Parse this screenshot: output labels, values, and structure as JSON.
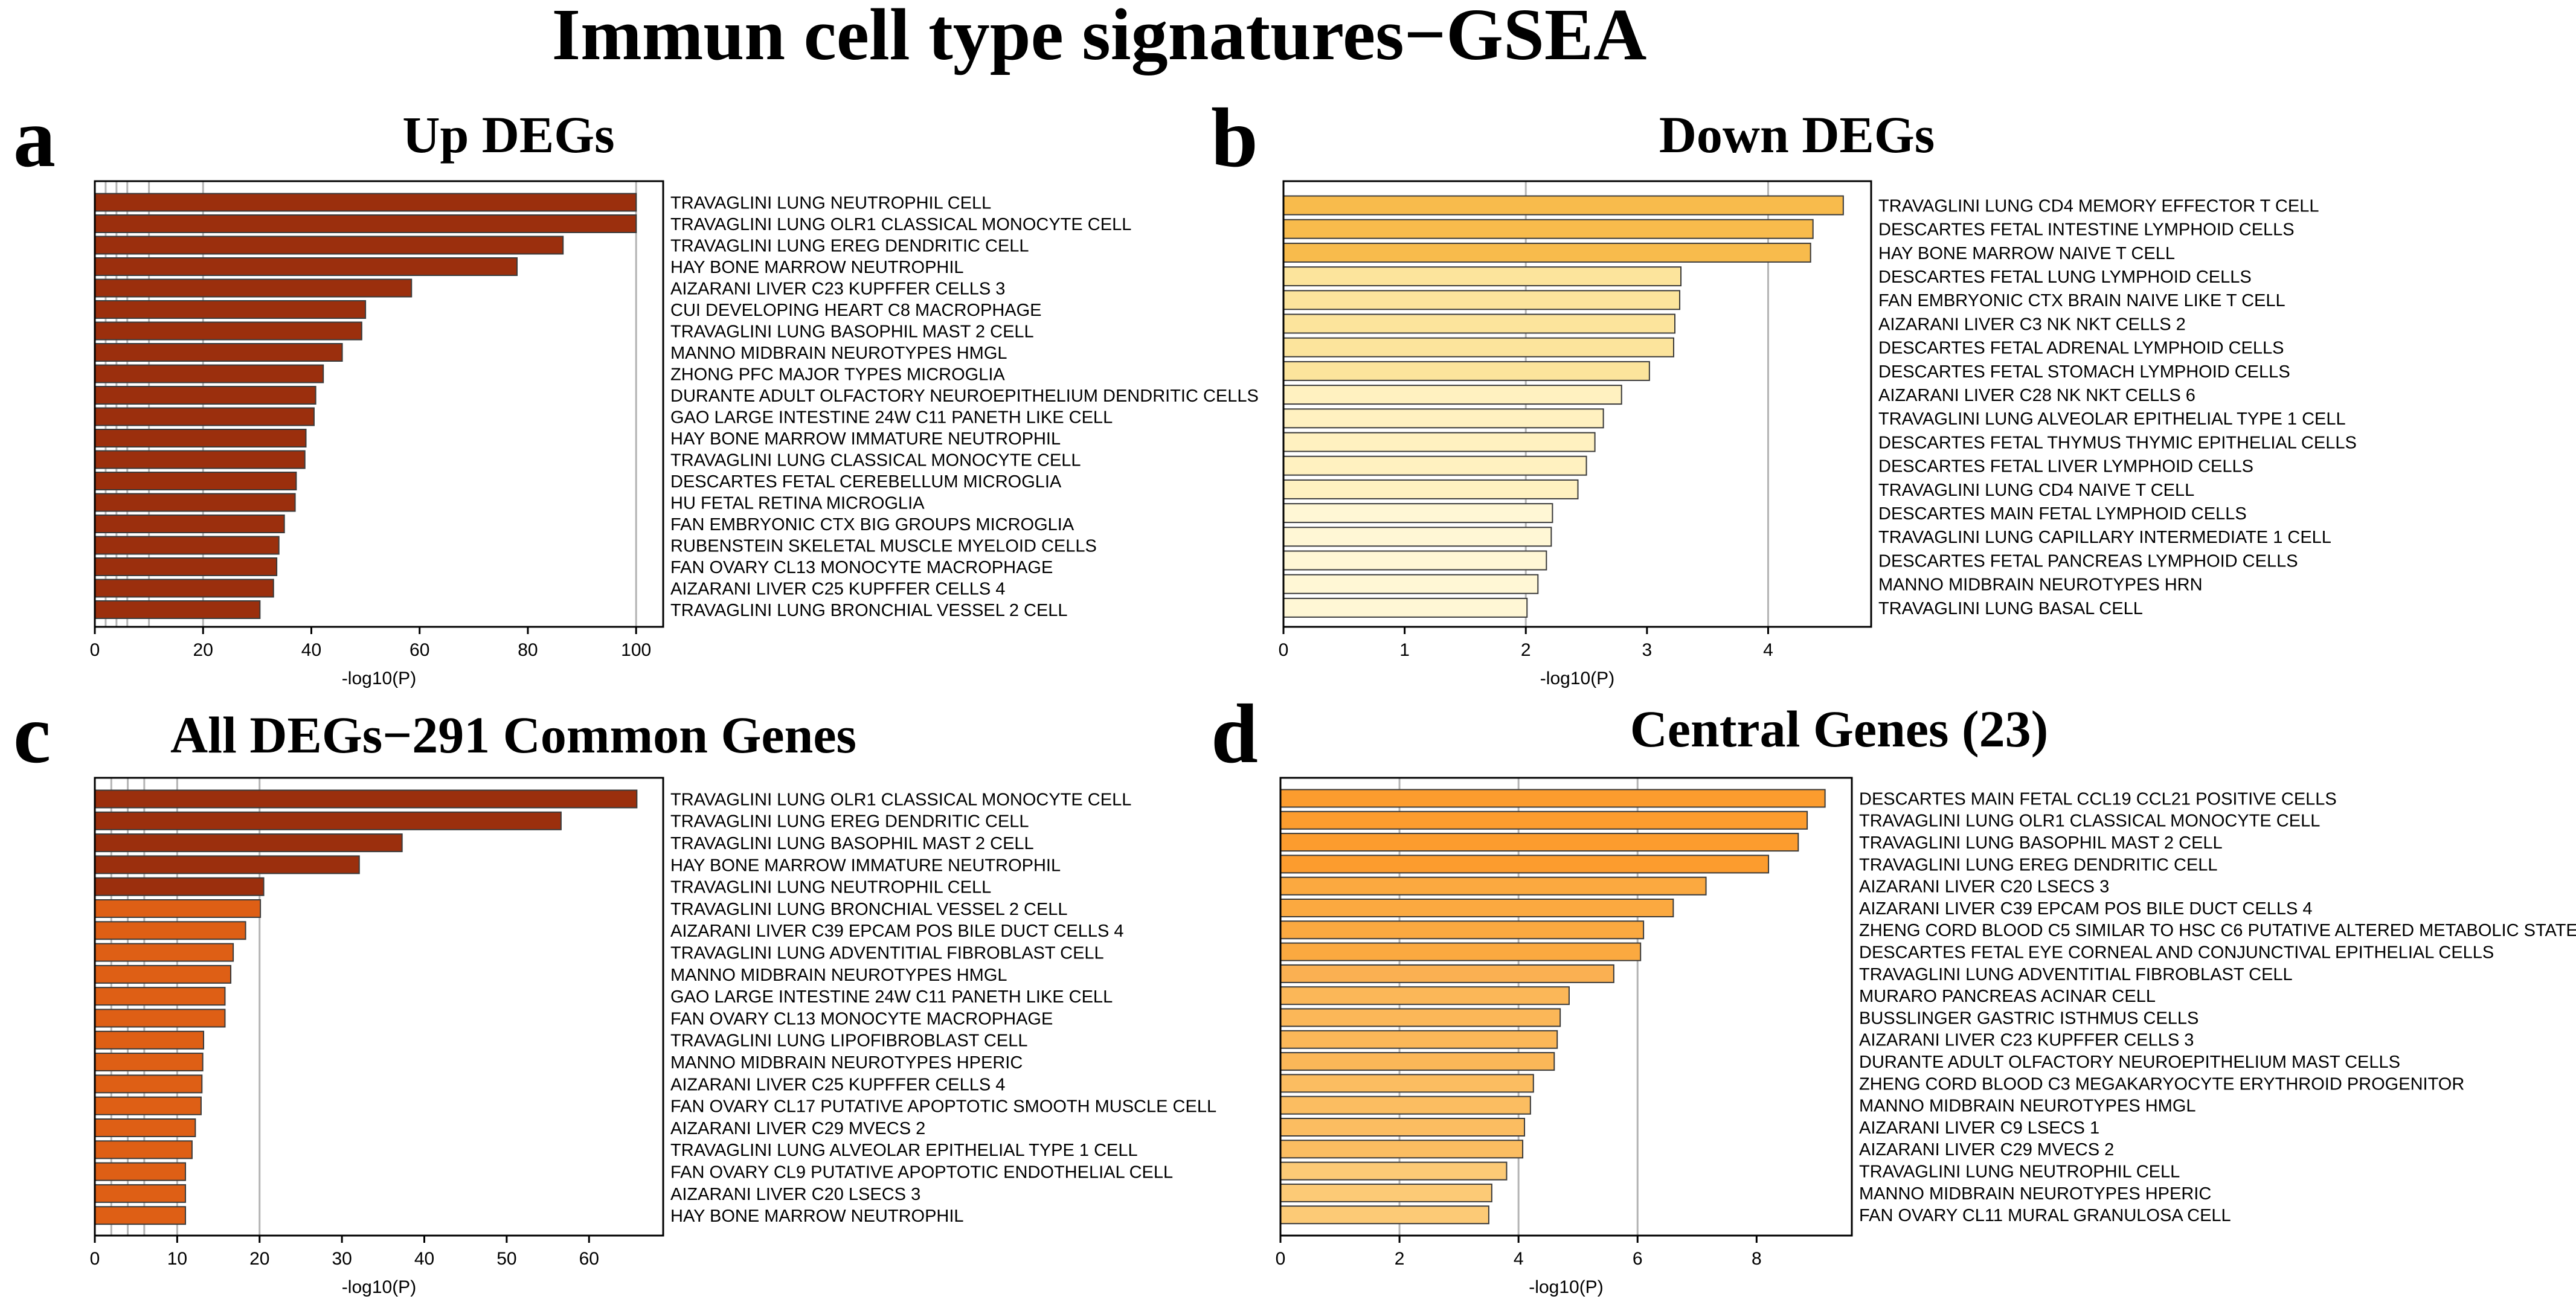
{
  "figure_title": "Immun cell type signatures−GSEA",
  "chart_data": [
    {
      "panel": "a",
      "type": "bar",
      "orientation": "horizontal",
      "title": "Up DEGs",
      "xlabel": "-log10(P)",
      "xlim": [
        0,
        105
      ],
      "xticks": [
        0,
        20,
        40,
        60,
        80,
        100
      ],
      "grid_x": [
        2,
        4,
        6,
        10,
        20,
        100
      ],
      "color": "#9b2f0d",
      "categories": [
        "TRAVAGLINI LUNG NEUTROPHIL CELL",
        "TRAVAGLINI LUNG OLR1 CLASSICAL MONOCYTE CELL",
        "TRAVAGLINI LUNG EREG DENDRITIC CELL",
        "HAY BONE MARROW NEUTROPHIL",
        "AIZARANI LIVER C23 KUPFFER CELLS 3",
        "CUI DEVELOPING HEART C8 MACROPHAGE",
        "TRAVAGLINI LUNG BASOPHIL MAST 2 CELL",
        "MANNO MIDBRAIN NEUROTYPES HMGL",
        "ZHONG PFC MAJOR TYPES MICROGLIA",
        "DURANTE ADULT OLFACTORY NEUROEPITHELIUM DENDRITIC CELLS",
        "GAO LARGE INTESTINE 24W C11 PANETH LIKE CELL",
        "HAY BONE MARROW IMMATURE NEUTROPHIL",
        "TRAVAGLINI LUNG CLASSICAL MONOCYTE CELL",
        "DESCARTES FETAL CEREBELLUM MICROGLIA",
        "HU FETAL RETINA MICROGLIA",
        "FAN EMBRYONIC CTX BIG GROUPS MICROGLIA",
        "RUBENSTEIN SKELETAL MUSCLE MYELOID CELLS",
        "FAN OVARY CL13 MONOCYTE MACROPHAGE",
        "AIZARANI LIVER C25 KUPFFER CELLS 4",
        "TRAVAGLINI LUNG BRONCHIAL VESSEL 2 CELL"
      ],
      "values": [
        100,
        100,
        86.5,
        78,
        58.5,
        50,
        49.3,
        45.7,
        42.2,
        40.8,
        40.5,
        39,
        38.8,
        37.2,
        37,
        35,
        34,
        33.6,
        33,
        30.5
      ]
    },
    {
      "panel": "b",
      "type": "bar",
      "orientation": "horizontal",
      "title": "Down DEGs",
      "xlabel": "-log10(P)",
      "xlim": [
        0,
        4.85
      ],
      "xticks": [
        0,
        1,
        2,
        3,
        4
      ],
      "grid_x": [
        2,
        4
      ],
      "colors": [
        "#f8bb4c",
        "#f8bb4c",
        "#f8bb4c",
        "#fce49c",
        "#fce49c",
        "#fce49c",
        "#fce49c",
        "#fce49c",
        "#fff1c0",
        "#fff1c0",
        "#fff1c0",
        "#fff1c0",
        "#fff1c0",
        "#fff7d5",
        "#fff7d5",
        "#fff7d5",
        "#fff7d5",
        "#fff7d5"
      ],
      "categories": [
        "TRAVAGLINI LUNG CD4 MEMORY EFFECTOR T CELL",
        "DESCARTES FETAL INTESTINE LYMPHOID CELLS",
        "HAY BONE MARROW NAIVE T CELL",
        "DESCARTES FETAL LUNG LYMPHOID CELLS",
        "FAN EMBRYONIC CTX BRAIN NAIVE LIKE T CELL",
        "AIZARANI LIVER C3 NK NKT CELLS 2",
        "DESCARTES FETAL ADRENAL LYMPHOID CELLS",
        "DESCARTES FETAL STOMACH LYMPHOID CELLS",
        "AIZARANI LIVER C28 NK NKT CELLS 6",
        "TRAVAGLINI LUNG ALVEOLAR EPITHELIAL TYPE 1 CELL",
        "DESCARTES FETAL THYMUS THYMIC EPITHELIAL CELLS",
        "DESCARTES FETAL LIVER LYMPHOID CELLS",
        "TRAVAGLINI LUNG CD4 NAIVE T CELL",
        "DESCARTES MAIN FETAL LYMPHOID CELLS",
        "TRAVAGLINI LUNG CAPILLARY INTERMEDIATE 1 CELL",
        "DESCARTES FETAL PANCREAS LYMPHOID CELLS",
        "MANNO MIDBRAIN NEUROTYPES HRN",
        "TRAVAGLINI LUNG BASAL CELL"
      ],
      "values": [
        4.62,
        4.37,
        4.35,
        3.28,
        3.27,
        3.23,
        3.22,
        3.02,
        2.79,
        2.64,
        2.57,
        2.5,
        2.43,
        2.22,
        2.21,
        2.17,
        2.1,
        2.01
      ]
    },
    {
      "panel": "c",
      "type": "bar",
      "orientation": "horizontal",
      "title": "All DEGs−291 Common Genes",
      "xlabel": "-log10(P)",
      "xlim": [
        0,
        69
      ],
      "xticks": [
        0,
        10,
        20,
        30,
        40,
        50,
        60
      ],
      "grid_x": [
        2,
        4,
        6,
        10,
        20
      ],
      "colors": [
        "#9b2f0d",
        "#9b2f0d",
        "#9b2f0d",
        "#9b2f0d",
        "#9b2f0d",
        "#de5f15",
        "#de5f15",
        "#de5f15",
        "#de5f15",
        "#de5f15",
        "#de5f15",
        "#de5f15",
        "#de5f15",
        "#de5f15",
        "#de5f15",
        "#de5f15",
        "#de5f15",
        "#de5f15",
        "#de5f15",
        "#de5f15"
      ],
      "categories": [
        "TRAVAGLINI LUNG OLR1 CLASSICAL MONOCYTE CELL",
        "TRAVAGLINI LUNG EREG DENDRITIC CELL",
        "TRAVAGLINI LUNG BASOPHIL MAST 2 CELL",
        "HAY BONE MARROW IMMATURE NEUTROPHIL",
        "TRAVAGLINI LUNG NEUTROPHIL CELL",
        "TRAVAGLINI LUNG BRONCHIAL VESSEL 2 CELL",
        "AIZARANI LIVER C39 EPCAM POS BILE DUCT CELLS 4",
        "TRAVAGLINI LUNG ADVENTITIAL FIBROBLAST CELL",
        "MANNO MIDBRAIN NEUROTYPES HMGL",
        "GAO LARGE INTESTINE 24W C11 PANETH LIKE CELL",
        "FAN OVARY CL13 MONOCYTE MACROPHAGE",
        "TRAVAGLINI LUNG LIPOFIBROBLAST CELL",
        "MANNO MIDBRAIN NEUROTYPES HPERIC",
        "AIZARANI LIVER C25 KUPFFER CELLS 4",
        "FAN OVARY CL17 PUTATIVE APOPTOTIC SMOOTH MUSCLE CELL",
        "AIZARANI LIVER C29 MVECS 2",
        "TRAVAGLINI LUNG ALVEOLAR EPITHELIAL TYPE 1 CELL",
        "FAN OVARY CL9 PUTATIVE APOPTOTIC ENDOTHELIAL CELL",
        "AIZARANI LIVER C20 LSECS 3",
        "HAY BONE MARROW NEUTROPHIL"
      ],
      "values": [
        65.8,
        56.6,
        37.3,
        32.1,
        20.5,
        20.1,
        18.3,
        16.8,
        16.5,
        15.8,
        15.8,
        13.2,
        13.1,
        13,
        12.9,
        12.2,
        11.8,
        11,
        11,
        11
      ]
    },
    {
      "panel": "d",
      "type": "bar",
      "orientation": "horizontal",
      "title": "Central Genes (23)",
      "xlabel": "-log10(P)",
      "xlim": [
        0,
        9.6
      ],
      "xticks": [
        0,
        2,
        4,
        6,
        8
      ],
      "grid_x": [
        2,
        4,
        6
      ],
      "colors": [
        "#fc9c2e",
        "#fc9c2e",
        "#fc9c2e",
        "#fc9c2e",
        "#fba940",
        "#fba940",
        "#fba940",
        "#fba940",
        "#fab052",
        "#fbb758",
        "#fbb758",
        "#fbb758",
        "#fbb758",
        "#fbbd61",
        "#fbbd61",
        "#fbbd61",
        "#fbbd61",
        "#fcca76",
        "#fcca76",
        "#fcca76"
      ],
      "categories": [
        "DESCARTES MAIN FETAL CCL19 CCL21 POSITIVE CELLS",
        "TRAVAGLINI LUNG OLR1 CLASSICAL MONOCYTE CELL",
        "TRAVAGLINI LUNG BASOPHIL MAST 2 CELL",
        "TRAVAGLINI LUNG EREG DENDRITIC CELL",
        "AIZARANI LIVER C20 LSECS 3",
        "AIZARANI LIVER C39 EPCAM POS BILE DUCT CELLS 4",
        "ZHENG CORD BLOOD C5 SIMILAR TO HSC C6 PUTATIVE ALTERED METABOLIC STATE",
        "DESCARTES FETAL EYE CORNEAL AND CONJUNCTIVAL EPITHELIAL CELLS",
        "TRAVAGLINI LUNG ADVENTITIAL FIBROBLAST CELL",
        "MURARO PANCREAS ACINAR CELL",
        "BUSSLINGER GASTRIC ISTHMUS CELLS",
        "AIZARANI LIVER C23 KUPFFER CELLS 3",
        "DURANTE ADULT OLFACTORY NEUROEPITHELIUM MAST CELLS",
        "ZHENG CORD BLOOD C3 MEGAKARYOCYTE ERYTHROID PROGENITOR",
        "MANNO MIDBRAIN NEUROTYPES HMGL",
        "AIZARANI LIVER C9 LSECS 1",
        "AIZARANI LIVER C29 MVECS 2",
        "TRAVAGLINI LUNG NEUTROPHIL CELL",
        "MANNO MIDBRAIN NEUROTYPES HPERIC",
        "FAN OVARY CL11 MURAL GRANULOSA CELL"
      ],
      "values": [
        9.15,
        8.85,
        8.7,
        8.2,
        7.15,
        6.6,
        6.1,
        6.05,
        5.6,
        4.85,
        4.7,
        4.65,
        4.6,
        4.25,
        4.2,
        4.1,
        4.07,
        3.8,
        3.55,
        3.5
      ]
    }
  ]
}
